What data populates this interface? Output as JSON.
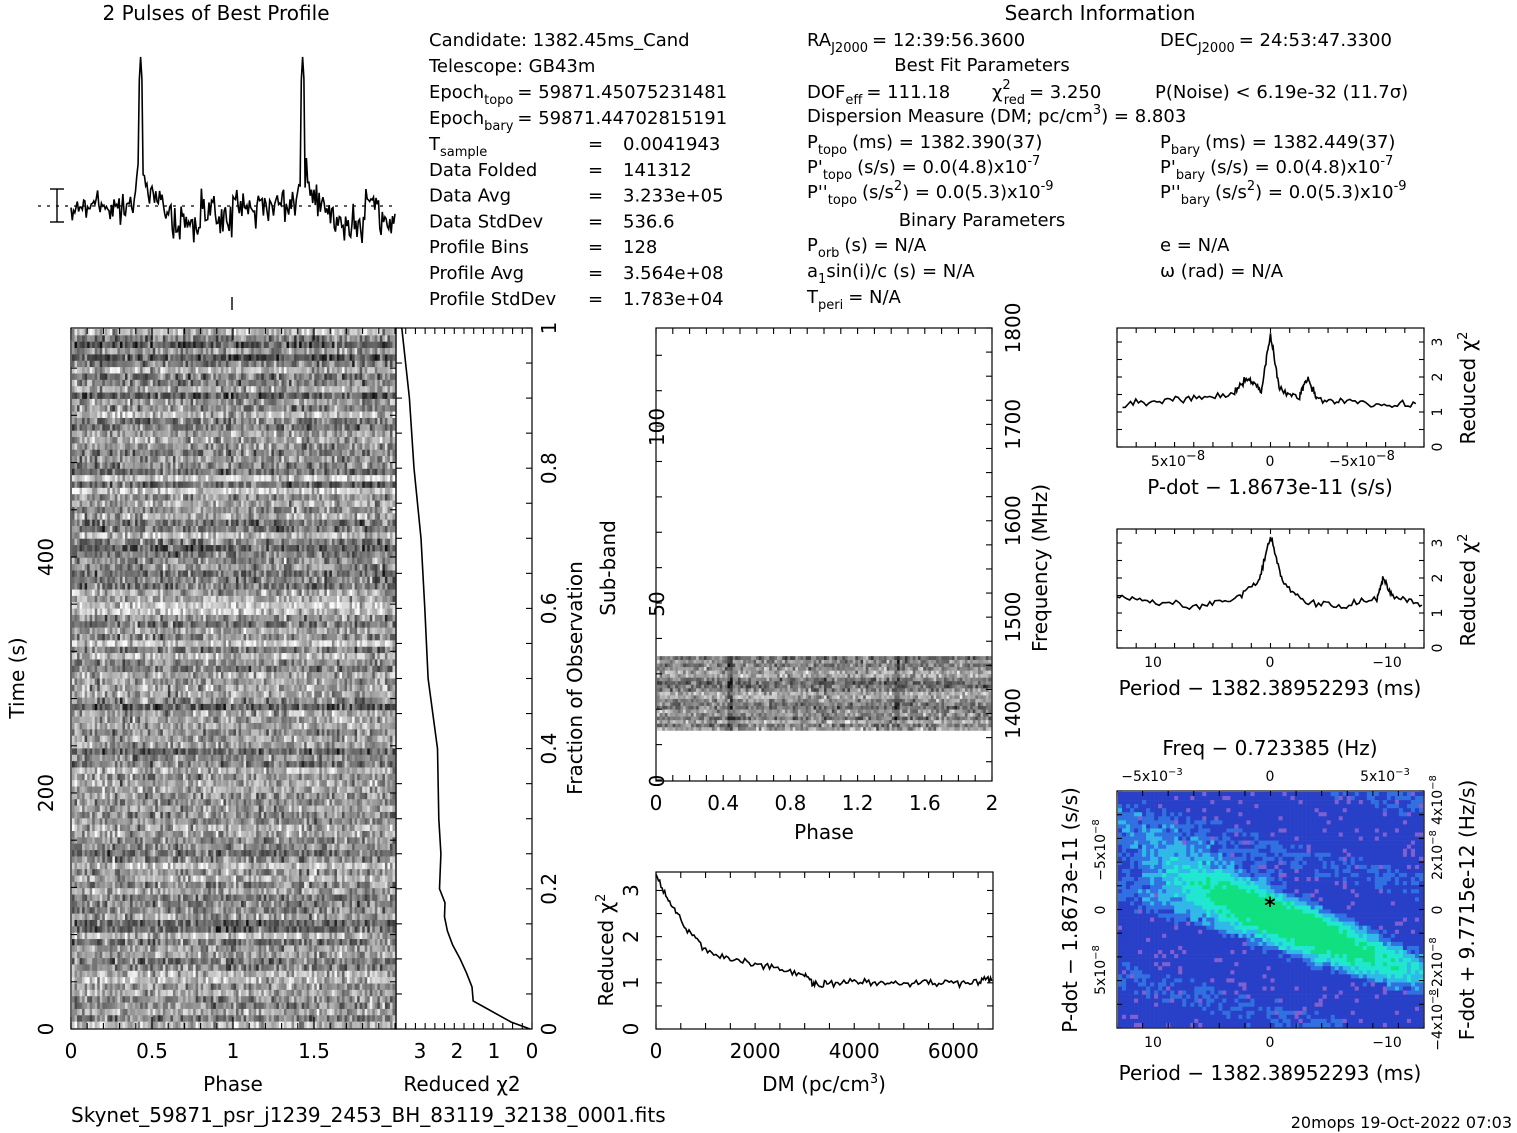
{
  "header": {
    "profile_title": "2 Pulses of Best Profile",
    "search_title": "Search Information"
  },
  "info": {
    "candidate": "Candidate:  1382.45ms_Cand",
    "telescope": "Telescope:  GB43m",
    "epoch_topo_label": "Epoch",
    "epoch_topo_sub": "topo",
    "epoch_topo_val": "= 59871.45075231481",
    "epoch_bary_label": "Epoch",
    "epoch_bary_sub": "bary",
    "epoch_bary_val": "= 59871.44702815191",
    "rows": [
      {
        "label": "T",
        "sub": "sample",
        "eq": "=",
        "val": "0.0041943"
      },
      {
        "label": "Data Folded",
        "sub": "",
        "eq": "=",
        "val": "141312"
      },
      {
        "label": "Data Avg",
        "sub": "",
        "eq": "=",
        "val": "3.233e+05"
      },
      {
        "label": "Data StdDev",
        "sub": "",
        "eq": "=",
        "val": "536.6"
      },
      {
        "label": "Profile Bins",
        "sub": "",
        "eq": "=",
        "val": "128"
      },
      {
        "label": "Profile Avg",
        "sub": "",
        "eq": "=",
        "val": "3.564e+08"
      },
      {
        "label": "Profile StdDev",
        "sub": "",
        "eq": "=",
        "val": "1.783e+04"
      }
    ],
    "ra": "RA",
    "ra_sub": "J2000",
    "ra_val": "= 12:39:56.3600",
    "dec": "DEC",
    "dec_sub": "J2000",
    "dec_val": "= 24:53:47.3300",
    "best_fit_title": "Best Fit Parameters",
    "dof": "DOF",
    "dof_sub": "eff",
    "dof_val": "= 111.18",
    "chi": "χ",
    "chi_sup": "2",
    "chi_sub": "red",
    "chi_val": "= 3.250",
    "pnoise": "P(Noise) < 6.19e-32  (11.7σ)",
    "dm_line": "Dispersion Measure (DM; pc/cm",
    "dm_sup": "3",
    "dm_val": ") = 8.803",
    "ptopo": "P",
    "ptopo_sub": "topo",
    "ptopo_val": "(ms) =  1382.390(37)",
    "pbary": "P",
    "pbary_sub": "bary",
    "pbary_val": "(ms) =  1382.449(37)",
    "pdtopo": "P'",
    "pdtopo_sub": "topo",
    "pdtopo_val": "(s/s) = 0.0(4.8)x10",
    "pdtopo_exp": "-7",
    "pdbary": "P'",
    "pdbary_sub": "bary",
    "pdbary_val": "(s/s) = 0.0(4.8)x10",
    "pdbary_exp": "-7",
    "pddtopo": "P''",
    "pddtopo_sub": "topo",
    "pddtopo_val": "(s/s",
    "pddtopo_sup": "2",
    "pddtopo_val2": ") = 0.0(5.3)x10",
    "pddtopo_exp": "-9",
    "pddbary": "P''",
    "pddbary_sub": "bary",
    "pddbary_val": "(s/s",
    "pddbary_sup": "2",
    "pddbary_val2": ") = 0.0(5.3)x10",
    "pddbary_exp": "-9",
    "binary_title": "Binary Parameters",
    "porb": "P",
    "porb_sub": "orb",
    "porb_val": "(s) = N/A",
    "e_val": "e = N/A",
    "a1": "a",
    "a1_sub": "1",
    "a1_val": "sin(i)/c (s) = N/A",
    "omega_val": "ω (rad) = N/A",
    "tperi": "T",
    "tperi_sub": "peri",
    "tperi_val": "= N/A"
  },
  "footer": {
    "filename": "Skynet_59871_psr_j1239_2453_BH_83119_32138_0001.fits",
    "stamp": "20mops 19-Oct-2022 07:03"
  },
  "chart_data": [
    {
      "type": "line",
      "title": "2 Pulses of Best Profile",
      "xlabel": "",
      "ylabel": "",
      "x_range": [
        0,
        2
      ],
      "pulse_peaks_phase": [
        0.43,
        1.43
      ],
      "series": [
        {
          "values": []
        }
      ]
    },
    {
      "type": "heatmap",
      "xlabel": "Phase",
      "ylabel": "Time (s)",
      "xlim": [
        0,
        2
      ],
      "ylim": [
        0,
        560
      ],
      "x_ticks": [
        "0",
        "0.5",
        "1",
        "1.5"
      ],
      "y_ticks": [
        "0",
        "200",
        "400"
      ],
      "colormap": "grayscale"
    },
    {
      "type": "line",
      "xlabel": "Reduced χ2",
      "ylabel": "Fraction of Observation",
      "xlim": [
        3.5,
        0
      ],
      "ylim": [
        0,
        1
      ],
      "x_ticks": [
        "3",
        "2",
        "1",
        "0"
      ],
      "y_ticks": [
        "0",
        "0.2",
        "0.4",
        "0.6",
        "0.8",
        "1"
      ],
      "points": [
        [
          0,
          0.0
        ],
        [
          0.5,
          0.01
        ],
        [
          1.4,
          0.04
        ],
        [
          1.5,
          0.06
        ],
        [
          1.6,
          0.08
        ],
        [
          1.8,
          0.1
        ],
        [
          2.0,
          0.12
        ],
        [
          2.1,
          0.14
        ],
        [
          2.2,
          0.16
        ],
        [
          2.2,
          0.18
        ],
        [
          2.3,
          0.2
        ],
        [
          2.3,
          0.25
        ],
        [
          2.4,
          0.3
        ],
        [
          2.4,
          0.4
        ],
        [
          2.6,
          0.5
        ],
        [
          2.7,
          0.6
        ],
        [
          2.8,
          0.7
        ],
        [
          3.0,
          0.8
        ],
        [
          3.1,
          0.9
        ],
        [
          3.3,
          1.0
        ]
      ]
    },
    {
      "type": "heatmap",
      "xlabel": "Phase",
      "ylabel": "Sub-band",
      "y2label": "Frequency (MHz)",
      "xlim": [
        0,
        2
      ],
      "ylim": [
        0,
        128
      ],
      "x_ticks": [
        "0",
        "0.4",
        "0.8",
        "1.2",
        "1.6",
        "2"
      ],
      "y_ticks": [
        "0",
        "50",
        "100"
      ],
      "y2_ticks": [
        "1400",
        "1500",
        "1600",
        "1700",
        "1800"
      ],
      "active_subbands": [
        14,
        35
      ],
      "colormap": "grayscale"
    },
    {
      "type": "line",
      "xlabel": "DM (pc/cm3)",
      "ylabel": "Reduced χ2",
      "xlim": [
        0,
        6800
      ],
      "ylim": [
        0,
        3.4
      ],
      "x_ticks": [
        "0",
        "2000",
        "4000",
        "6000"
      ],
      "y_ticks": [
        "0",
        "1",
        "2",
        "3"
      ],
      "points": [
        [
          0,
          3.3
        ],
        [
          300,
          2.7
        ],
        [
          600,
          2.2
        ],
        [
          1000,
          1.7
        ],
        [
          1500,
          1.5
        ],
        [
          2000,
          1.4
        ],
        [
          2500,
          1.3
        ],
        [
          3000,
          1.2
        ],
        [
          3200,
          0.95
        ],
        [
          3500,
          1.0
        ],
        [
          4000,
          1.05
        ],
        [
          4500,
          1.0
        ],
        [
          5000,
          1.0
        ],
        [
          5500,
          1.0
        ],
        [
          6000,
          1.0
        ],
        [
          6500,
          1.05
        ],
        [
          6800,
          1.1
        ]
      ]
    },
    {
      "type": "line",
      "xlabel": "P-dot − 1.8673e-11 (s/s)",
      "ylabel": "Reduced χ2",
      "xlim": [
        8e-08,
        -8e-08
      ],
      "ylim": [
        0,
        3.4
      ],
      "x_ticks": [
        "5x10-8",
        "0",
        "-5x10-8"
      ],
      "y_ticks": [
        "0",
        "1",
        "2",
        "3"
      ],
      "points": [
        [
          8e-08,
          1.2
        ],
        [
          6e-08,
          1.3
        ],
        [
          4e-08,
          1.4
        ],
        [
          2e-08,
          1.5
        ],
        [
          1.2e-08,
          2.0
        ],
        [
          5e-09,
          1.6
        ],
        [
          0.0,
          3.2
        ],
        [
          -5e-09,
          1.6
        ],
        [
          -1.5e-08,
          1.4
        ],
        [
          -2e-08,
          2.0
        ],
        [
          -2.5e-08,
          1.4
        ],
        [
          -4e-08,
          1.3
        ],
        [
          -6e-08,
          1.2
        ],
        [
          -8e-08,
          1.2
        ]
      ]
    },
    {
      "type": "line",
      "xlabel": "Period − 1382.38952293 (ms)",
      "ylabel": "Reduced χ2",
      "xlim": [
        13,
        -13
      ],
      "ylim": [
        0,
        3.4
      ],
      "x_ticks": [
        "10",
        "0",
        "−10"
      ],
      "y_ticks": [
        "0",
        "1",
        "2",
        "3"
      ],
      "points": [
        [
          13,
          1.5
        ],
        [
          10,
          1.3
        ],
        [
          6,
          1.2
        ],
        [
          3,
          1.4
        ],
        [
          1,
          1.9
        ],
        [
          0,
          3.2
        ],
        [
          -1,
          1.9
        ],
        [
          -3,
          1.3
        ],
        [
          -6,
          1.2
        ],
        [
          -9,
          1.4
        ],
        [
          -9.5,
          2.0
        ],
        [
          -10.5,
          1.4
        ],
        [
          -13,
          1.3
        ]
      ]
    },
    {
      "type": "heatmap",
      "title": "Freq − 0.723385 (Hz)",
      "xlabel": "Period − 1382.38952293 (ms)",
      "ylabel": "P-dot − 1.8673e-11 (s/s)",
      "y2label": "F-dot + 9.7715e-12 (Hz/s)",
      "x_ticks": [
        "10",
        "0",
        "−10"
      ],
      "top_ticks": [
        "−5x10-3",
        "0",
        "5x10-3"
      ],
      "y_ticks": [
        "-5x10-8",
        "0",
        "5x10-8"
      ],
      "y2_ticks": [
        "4x10-8",
        "2x10-8",
        "0",
        "-2x10-8",
        "-4x10-8"
      ],
      "best": [
        0,
        0
      ],
      "colormap": "blue-cyan-green"
    }
  ]
}
